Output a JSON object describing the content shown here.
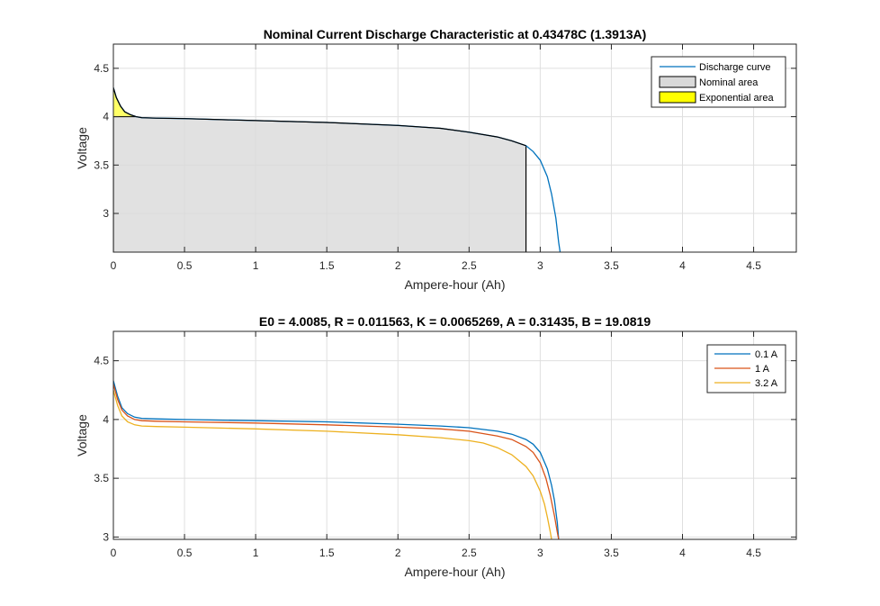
{
  "chart_data": [
    {
      "type": "line",
      "title": "Nominal Current Discharge Characteristic at 0.43478C (1.3913A)",
      "xlabel": "Ampere-hour (Ah)",
      "ylabel": "Voltage",
      "xlim": [
        0,
        4.8
      ],
      "ylim": [
        2.6,
        4.75
      ],
      "xticks": [
        "0",
        "0.5",
        "1",
        "1.5",
        "2",
        "2.5",
        "3",
        "3.5",
        "4",
        "4.5"
      ],
      "yticks": [
        "3",
        "3.5",
        "4",
        "4.5"
      ],
      "grid": true,
      "legend_position": "top-right",
      "legend": [
        "Discharge curve",
        "Nominal area",
        "Exponential area"
      ],
      "series": [
        {
          "name": "Discharge curve",
          "color": "#0072BD",
          "x": [
            0,
            0.02,
            0.05,
            0.08,
            0.12,
            0.16,
            0.2,
            0.3,
            0.5,
            1.0,
            1.5,
            2.0,
            2.3,
            2.5,
            2.7,
            2.8,
            2.9,
            2.95,
            3.0,
            3.05,
            3.08,
            3.11,
            3.13,
            3.14
          ],
          "y": [
            4.3,
            4.2,
            4.11,
            4.05,
            4.02,
            4.0,
            3.99,
            3.985,
            3.98,
            3.96,
            3.94,
            3.91,
            3.88,
            3.84,
            3.79,
            3.75,
            3.7,
            3.64,
            3.55,
            3.38,
            3.2,
            2.95,
            2.7,
            2.6
          ]
        }
      ],
      "areas": [
        {
          "name": "Nominal area",
          "color": "#D9D9D9",
          "x_range": [
            0,
            2.9
          ],
          "y_top": 4.0
        },
        {
          "name": "Exponential area",
          "color": "#FFFF00",
          "x_range": [
            0,
            0.16
          ],
          "y_base": 4.0
        }
      ]
    },
    {
      "type": "line",
      "title": "E0 = 4.0085, R = 0.011563, K = 0.0065269, A = 0.31435, B = 19.0819",
      "xlabel": "Ampere-hour (Ah)",
      "ylabel": "Voltage",
      "xlim": [
        0,
        4.8
      ],
      "ylim": [
        2.98,
        4.75
      ],
      "xticks": [
        "0",
        "0.5",
        "1",
        "1.5",
        "2",
        "2.5",
        "3",
        "3.5",
        "4",
        "4.5"
      ],
      "yticks": [
        "3",
        "3.5",
        "4",
        "4.5"
      ],
      "grid": true,
      "legend_position": "top-right",
      "series": [
        {
          "name": "0.1 A",
          "color": "#0072BD",
          "x": [
            0,
            0.03,
            0.06,
            0.1,
            0.15,
            0.2,
            0.3,
            0.5,
            1.0,
            1.5,
            2.0,
            2.3,
            2.5,
            2.7,
            2.8,
            2.9,
            2.95,
            3.0,
            3.05,
            3.08,
            3.1,
            3.12,
            3.13
          ],
          "y": [
            4.33,
            4.2,
            4.1,
            4.05,
            4.02,
            4.01,
            4.005,
            4.0,
            3.99,
            3.98,
            3.96,
            3.945,
            3.93,
            3.9,
            3.875,
            3.83,
            3.79,
            3.72,
            3.58,
            3.44,
            3.31,
            3.12,
            2.98
          ]
        },
        {
          "name": "1 A",
          "color": "#D95319",
          "x": [
            0,
            0.03,
            0.06,
            0.1,
            0.15,
            0.2,
            0.3,
            0.5,
            1.0,
            1.5,
            2.0,
            2.3,
            2.5,
            2.7,
            2.8,
            2.9,
            2.95,
            3.0,
            3.04,
            3.07,
            3.1,
            3.12,
            3.13
          ],
          "y": [
            4.3,
            4.17,
            4.08,
            4.03,
            4.0,
            3.99,
            3.985,
            3.98,
            3.97,
            3.955,
            3.935,
            3.92,
            3.9,
            3.86,
            3.83,
            3.77,
            3.72,
            3.63,
            3.5,
            3.36,
            3.18,
            3.04,
            2.98
          ]
        },
        {
          "name": "3.2 A",
          "color": "#EDB120",
          "x": [
            0,
            0.03,
            0.06,
            0.1,
            0.15,
            0.2,
            0.3,
            0.5,
            1.0,
            1.5,
            2.0,
            2.3,
            2.5,
            2.6,
            2.7,
            2.8,
            2.9,
            2.95,
            3.0,
            3.03,
            3.05,
            3.07,
            3.08
          ],
          "y": [
            4.25,
            4.12,
            4.03,
            3.98,
            3.955,
            3.945,
            3.94,
            3.935,
            3.92,
            3.9,
            3.87,
            3.845,
            3.82,
            3.8,
            3.76,
            3.7,
            3.6,
            3.52,
            3.39,
            3.28,
            3.17,
            3.05,
            2.98
          ]
        }
      ]
    }
  ]
}
